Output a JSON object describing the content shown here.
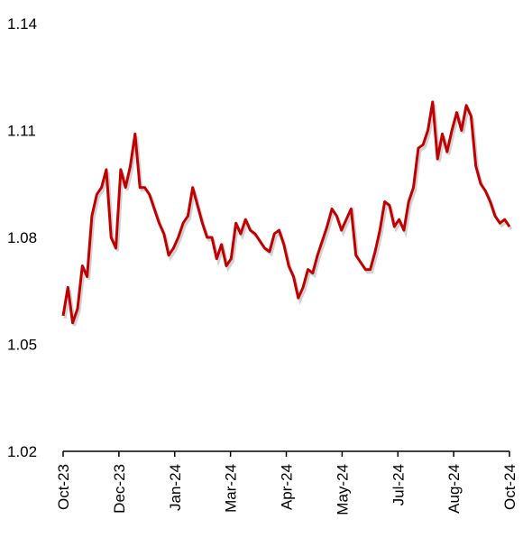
{
  "chart_data": {
    "type": "line",
    "title": "",
    "xlabel": "",
    "ylabel": "",
    "ylim": [
      1.02,
      1.14
    ],
    "yticks": [
      "1.14",
      "1.11",
      "1.08",
      "1.05",
      "1.02"
    ],
    "xticks": [
      "Oct-23",
      "Dec-23",
      "Jan-24",
      "Mar-24",
      "Apr-24",
      "May-24",
      "Jul-24",
      "Aug-24",
      "Oct-24"
    ],
    "grid": false,
    "legend": "none",
    "series": [
      {
        "color": "#c00000",
        "x": [
          "2023-10-01",
          "2023-10-05",
          "2023-10-09",
          "2023-10-13",
          "2023-10-17",
          "2023-10-21",
          "2023-10-25",
          "2023-10-29",
          "2023-11-02",
          "2023-11-06",
          "2023-11-10",
          "2023-11-14",
          "2023-11-18",
          "2023-11-22",
          "2023-11-26",
          "2023-11-30",
          "2023-12-04",
          "2023-12-08",
          "2023-12-12",
          "2023-12-16",
          "2023-12-20",
          "2023-12-24",
          "2023-12-28",
          "2024-01-01",
          "2024-01-05",
          "2024-01-09",
          "2024-01-13",
          "2024-01-17",
          "2024-01-21",
          "2024-01-25",
          "2024-01-29",
          "2024-02-02",
          "2024-02-06",
          "2024-02-10",
          "2024-02-14",
          "2024-02-18",
          "2024-02-22",
          "2024-02-26",
          "2024-03-01",
          "2024-03-05",
          "2024-03-09",
          "2024-03-13",
          "2024-03-17",
          "2024-03-21",
          "2024-03-25",
          "2024-03-29",
          "2024-04-02",
          "2024-04-06",
          "2024-04-10",
          "2024-04-14",
          "2024-04-18",
          "2024-04-22",
          "2024-04-26",
          "2024-04-30",
          "2024-05-04",
          "2024-05-08",
          "2024-05-12",
          "2024-05-16",
          "2024-05-20",
          "2024-05-24",
          "2024-05-28",
          "2024-06-01",
          "2024-06-05",
          "2024-06-09",
          "2024-06-13",
          "2024-06-17",
          "2024-06-21",
          "2024-06-25",
          "2024-06-29",
          "2024-07-03",
          "2024-07-07",
          "2024-07-11",
          "2024-07-15",
          "2024-07-19",
          "2024-07-23",
          "2024-07-27",
          "2024-07-31",
          "2024-08-04",
          "2024-08-08",
          "2024-08-12",
          "2024-08-16",
          "2024-08-20",
          "2024-08-24",
          "2024-08-28",
          "2024-09-01",
          "2024-09-05",
          "2024-09-09",
          "2024-09-13",
          "2024-09-17",
          "2024-09-21",
          "2024-09-25",
          "2024-09-29",
          "2024-10-03",
          "2024-10-07"
        ],
        "values": [
          1.058,
          1.066,
          1.056,
          1.06,
          1.072,
          1.069,
          1.086,
          1.092,
          1.094,
          1.099,
          1.08,
          1.077,
          1.099,
          1.094,
          1.1,
          1.109,
          1.094,
          1.094,
          1.092,
          1.088,
          1.084,
          1.081,
          1.075,
          1.077,
          1.08,
          1.084,
          1.086,
          1.094,
          1.089,
          1.084,
          1.08,
          1.08,
          1.074,
          1.078,
          1.072,
          1.074,
          1.084,
          1.081,
          1.085,
          1.082,
          1.081,
          1.079,
          1.077,
          1.076,
          1.081,
          1.082,
          1.078,
          1.072,
          1.069,
          1.063,
          1.066,
          1.071,
          1.07,
          1.075,
          1.079,
          1.083,
          1.088,
          1.086,
          1.082,
          1.085,
          1.088,
          1.075,
          1.073,
          1.071,
          1.071,
          1.076,
          1.082,
          1.09,
          1.089,
          1.083,
          1.085,
          1.082,
          1.09,
          1.094,
          1.105,
          1.106,
          1.11,
          1.118,
          1.102,
          1.109,
          1.104,
          1.11,
          1.115,
          1.11,
          1.117,
          1.114,
          1.1,
          1.095,
          1.093,
          1.09,
          1.086,
          1.084,
          1.085,
          1.083
        ]
      }
    ]
  }
}
